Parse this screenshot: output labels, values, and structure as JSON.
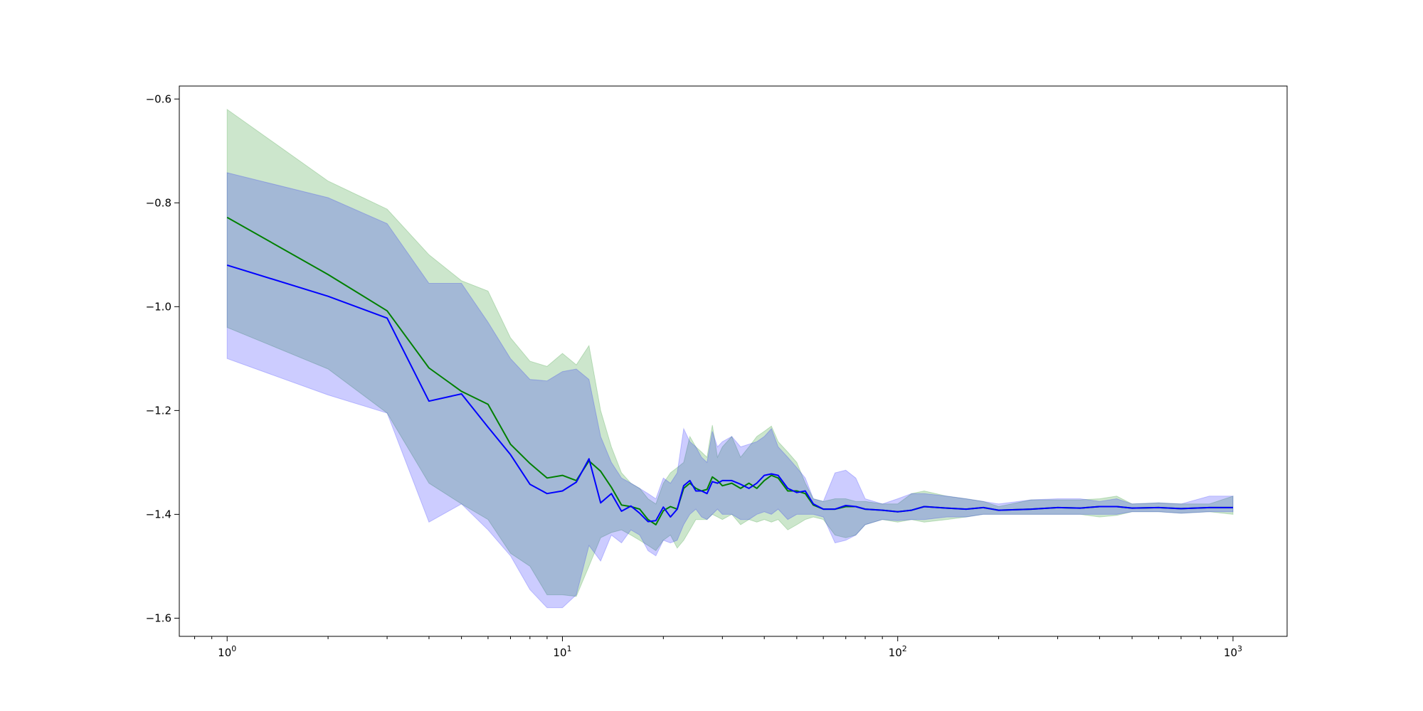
{
  "chart_data": {
    "type": "line",
    "title": "",
    "xlabel": "",
    "ylabel": "",
    "xscale": "log",
    "xlim": [
      0.72,
      1450
    ],
    "ylim": [
      -1.635,
      -0.575
    ],
    "grid": false,
    "legend": "none",
    "x_ticks": [
      {
        "value": 1,
        "base": "10",
        "exp": "0"
      },
      {
        "value": 10,
        "base": "10",
        "exp": "1"
      },
      {
        "value": 100,
        "base": "10",
        "exp": "2"
      },
      {
        "value": 1000,
        "base": "10",
        "exp": "3"
      }
    ],
    "y_ticks": [
      {
        "value": -0.6,
        "label": "−0.6"
      },
      {
        "value": -0.8,
        "label": "−0.8"
      },
      {
        "value": -1.0,
        "label": "−1.0"
      },
      {
        "value": -1.2,
        "label": "−1.2"
      },
      {
        "value": -1.4,
        "label": "−1.4"
      },
      {
        "value": -1.6,
        "label": "−1.6"
      }
    ],
    "series": [
      {
        "color": "#008000",
        "band_color": "#008000",
        "x": [
          1,
          2,
          3,
          4,
          5,
          6,
          7,
          8,
          9,
          10,
          11,
          12,
          13,
          14,
          15,
          16,
          17,
          18,
          19,
          20,
          21,
          22,
          23,
          24,
          25,
          26,
          27,
          28,
          29,
          30,
          32,
          34,
          36,
          38,
          40,
          42,
          44,
          47,
          50,
          53,
          56,
          60,
          65,
          70,
          75,
          80,
          90,
          100,
          110,
          120,
          140,
          160,
          180,
          200,
          250,
          300,
          350,
          400,
          450,
          500,
          600,
          700,
          850,
          1000
        ],
        "y": [
          -0.828,
          -0.938,
          -1.008,
          -1.118,
          -1.163,
          -1.188,
          -1.265,
          -1.302,
          -1.33,
          -1.325,
          -1.335,
          -1.297,
          -1.317,
          -1.348,
          -1.382,
          -1.385,
          -1.39,
          -1.41,
          -1.42,
          -1.393,
          -1.385,
          -1.39,
          -1.35,
          -1.34,
          -1.35,
          -1.355,
          -1.352,
          -1.328,
          -1.335,
          -1.345,
          -1.34,
          -1.35,
          -1.34,
          -1.35,
          -1.335,
          -1.325,
          -1.33,
          -1.355,
          -1.355,
          -1.36,
          -1.382,
          -1.39,
          -1.39,
          -1.385,
          -1.385,
          -1.39,
          -1.392,
          -1.395,
          -1.392,
          -1.385,
          -1.388,
          -1.39,
          -1.387,
          -1.392,
          -1.39,
          -1.387,
          -1.388,
          -1.385,
          -1.385,
          -1.388,
          -1.387,
          -1.389,
          -1.387,
          -1.387
        ],
        "upper": [
          -0.62,
          -0.758,
          -0.812,
          -0.9,
          -0.95,
          -0.97,
          -1.06,
          -1.105,
          -1.115,
          -1.09,
          -1.112,
          -1.075,
          -1.2,
          -1.27,
          -1.32,
          -1.34,
          -1.35,
          -1.37,
          -1.38,
          -1.34,
          -1.32,
          -1.31,
          -1.3,
          -1.25,
          -1.27,
          -1.28,
          -1.29,
          -1.228,
          -1.29,
          -1.27,
          -1.25,
          -1.29,
          -1.27,
          -1.25,
          -1.24,
          -1.23,
          -1.26,
          -1.28,
          -1.3,
          -1.34,
          -1.37,
          -1.375,
          -1.37,
          -1.37,
          -1.375,
          -1.375,
          -1.38,
          -1.38,
          -1.36,
          -1.355,
          -1.365,
          -1.37,
          -1.375,
          -1.385,
          -1.372,
          -1.372,
          -1.372,
          -1.37,
          -1.365,
          -1.38,
          -1.378,
          -1.38,
          -1.38,
          -1.365
        ],
        "lower": [
          -1.04,
          -1.12,
          -1.205,
          -1.34,
          -1.38,
          -1.41,
          -1.475,
          -1.5,
          -1.555,
          -1.555,
          -1.558,
          -1.5,
          -1.445,
          -1.435,
          -1.43,
          -1.44,
          -1.45,
          -1.46,
          -1.47,
          -1.45,
          -1.44,
          -1.465,
          -1.45,
          -1.43,
          -1.41,
          -1.41,
          -1.41,
          -1.4,
          -1.405,
          -1.41,
          -1.4,
          -1.42,
          -1.41,
          -1.415,
          -1.41,
          -1.415,
          -1.41,
          -1.43,
          -1.42,
          -1.41,
          -1.405,
          -1.41,
          -1.44,
          -1.445,
          -1.44,
          -1.42,
          -1.41,
          -1.415,
          -1.41,
          -1.415,
          -1.41,
          -1.405,
          -1.4,
          -1.4,
          -1.4,
          -1.4,
          -1.4,
          -1.405,
          -1.402,
          -1.395,
          -1.395,
          -1.398,
          -1.395,
          -1.4
        ]
      },
      {
        "color": "#0000ff",
        "band_color": "#0000ff",
        "x": [
          1,
          2,
          3,
          4,
          5,
          6,
          7,
          8,
          9,
          10,
          11,
          12,
          13,
          14,
          15,
          16,
          17,
          18,
          19,
          20,
          21,
          22,
          23,
          24,
          25,
          26,
          27,
          28,
          29,
          30,
          32,
          34,
          36,
          38,
          40,
          42,
          44,
          47,
          50,
          53,
          56,
          60,
          65,
          70,
          75,
          80,
          90,
          100,
          110,
          120,
          140,
          160,
          180,
          200,
          250,
          300,
          350,
          400,
          450,
          500,
          600,
          700,
          850,
          1000
        ],
        "y": [
          -0.92,
          -0.98,
          -1.022,
          -1.182,
          -1.168,
          -1.232,
          -1.285,
          -1.342,
          -1.36,
          -1.355,
          -1.338,
          -1.293,
          -1.378,
          -1.36,
          -1.394,
          -1.384,
          -1.398,
          -1.414,
          -1.412,
          -1.386,
          -1.405,
          -1.39,
          -1.345,
          -1.335,
          -1.355,
          -1.355,
          -1.36,
          -1.337,
          -1.34,
          -1.335,
          -1.335,
          -1.342,
          -1.35,
          -1.34,
          -1.325,
          -1.322,
          -1.325,
          -1.35,
          -1.358,
          -1.355,
          -1.38,
          -1.39,
          -1.39,
          -1.383,
          -1.385,
          -1.39,
          -1.392,
          -1.395,
          -1.392,
          -1.385,
          -1.388,
          -1.39,
          -1.387,
          -1.392,
          -1.39,
          -1.387,
          -1.388,
          -1.385,
          -1.385,
          -1.388,
          -1.387,
          -1.389,
          -1.387,
          -1.387
        ],
        "upper": [
          -0.742,
          -0.79,
          -0.84,
          -0.955,
          -0.955,
          -1.03,
          -1.1,
          -1.14,
          -1.143,
          -1.125,
          -1.12,
          -1.14,
          -1.25,
          -1.3,
          -1.33,
          -1.34,
          -1.35,
          -1.36,
          -1.37,
          -1.33,
          -1.34,
          -1.32,
          -1.235,
          -1.26,
          -1.27,
          -1.29,
          -1.3,
          -1.24,
          -1.27,
          -1.26,
          -1.25,
          -1.27,
          -1.265,
          -1.26,
          -1.25,
          -1.235,
          -1.27,
          -1.29,
          -1.31,
          -1.33,
          -1.37,
          -1.375,
          -1.32,
          -1.315,
          -1.33,
          -1.37,
          -1.38,
          -1.37,
          -1.36,
          -1.36,
          -1.365,
          -1.37,
          -1.375,
          -1.38,
          -1.372,
          -1.37,
          -1.37,
          -1.375,
          -1.37,
          -1.38,
          -1.378,
          -1.38,
          -1.365,
          -1.365
        ],
        "lower": [
          -1.1,
          -1.17,
          -1.205,
          -1.415,
          -1.38,
          -1.43,
          -1.48,
          -1.545,
          -1.58,
          -1.58,
          -1.555,
          -1.46,
          -1.49,
          -1.44,
          -1.455,
          -1.43,
          -1.44,
          -1.47,
          -1.48,
          -1.45,
          -1.455,
          -1.45,
          -1.42,
          -1.4,
          -1.39,
          -1.405,
          -1.41,
          -1.4,
          -1.39,
          -1.4,
          -1.4,
          -1.41,
          -1.41,
          -1.4,
          -1.395,
          -1.4,
          -1.39,
          -1.41,
          -1.4,
          -1.4,
          -1.4,
          -1.405,
          -1.455,
          -1.45,
          -1.44,
          -1.42,
          -1.41,
          -1.412,
          -1.41,
          -1.41,
          -1.405,
          -1.405,
          -1.4,
          -1.4,
          -1.4,
          -1.4,
          -1.4,
          -1.4,
          -1.4,
          -1.395,
          -1.395,
          -1.398,
          -1.395,
          -1.395
        ]
      }
    ]
  }
}
